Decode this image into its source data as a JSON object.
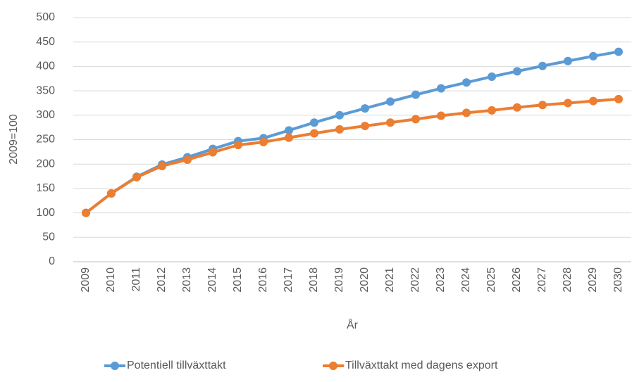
{
  "chart_data": {
    "type": "line",
    "x_label": "År",
    "y_label": "2009=100",
    "categories": [
      "2009",
      "2010",
      "2011",
      "2012",
      "2013",
      "2014",
      "2015",
      "2016",
      "2017",
      "2018",
      "2019",
      "2020",
      "2021",
      "2022",
      "2023",
      "2024",
      "2025",
      "2026",
      "2027",
      "2028",
      "2029",
      "2030"
    ],
    "series": [
      {
        "name": "Potentiell tillväxttakt",
        "color": "#5b9bd5",
        "values": [
          100,
          140,
          174,
          199,
          214,
          231,
          247,
          253,
          269,
          285,
          300,
          314,
          328,
          342,
          355,
          367,
          379,
          390,
          401,
          411,
          421,
          430
        ]
      },
      {
        "name": "Tillväxttakt med dagens export",
        "color": "#ed7d31",
        "values": [
          100,
          140,
          173,
          196,
          209,
          224,
          239,
          245,
          254,
          263,
          271,
          278,
          285,
          292,
          299,
          305,
          310,
          316,
          321,
          325,
          329,
          333
        ]
      }
    ],
    "ylim": [
      0,
      500
    ],
    "yticks": [
      0,
      50,
      100,
      150,
      200,
      250,
      300,
      350,
      400,
      450,
      500
    ],
    "grid": true,
    "legend": "bottom"
  }
}
